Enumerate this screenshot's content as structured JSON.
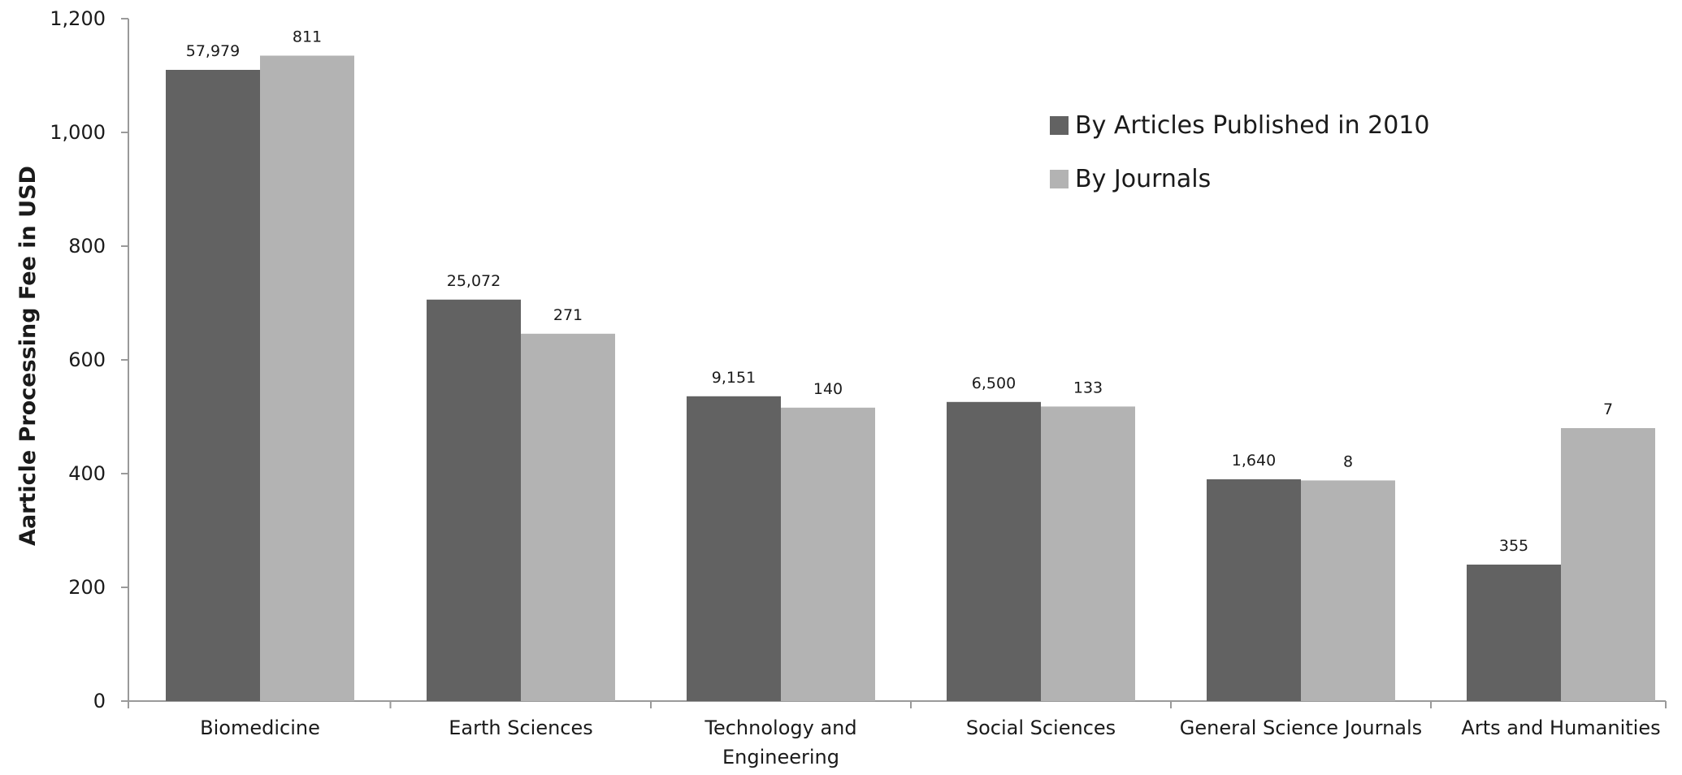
{
  "chart_data": {
    "type": "bar",
    "title": "",
    "xlabel": "",
    "ylabel": "Aarticle Processing Fee in USD",
    "ylim": [
      0,
      1200
    ],
    "yticks": [
      0,
      200,
      400,
      600,
      800,
      1000,
      1200
    ],
    "ytick_labels": [
      "0",
      "200",
      "400",
      "600",
      "800",
      "1,000",
      "1,200"
    ],
    "grid": false,
    "legend_position": "top-right",
    "categories": [
      [
        "Biomedicine"
      ],
      [
        "Earth Sciences"
      ],
      [
        "Technology and",
        "Engineering"
      ],
      [
        "Social Sciences"
      ],
      [
        "General Science Journals"
      ],
      [
        "Arts and Humanities"
      ]
    ],
    "series": [
      {
        "name": "By Articles Published in 2010",
        "color": "#626262",
        "values": [
          1110,
          706,
          536,
          526,
          390,
          240
        ],
        "data_labels": [
          "57,979",
          "25,072",
          "9,151",
          "6,500",
          "1,640",
          "355"
        ]
      },
      {
        "name": "By Journals",
        "color": "#b3b3b3",
        "values": [
          1135,
          646,
          516,
          518,
          388,
          480
        ],
        "data_labels": [
          "811",
          "271",
          "140",
          "133",
          "8",
          "7"
        ]
      }
    ]
  }
}
